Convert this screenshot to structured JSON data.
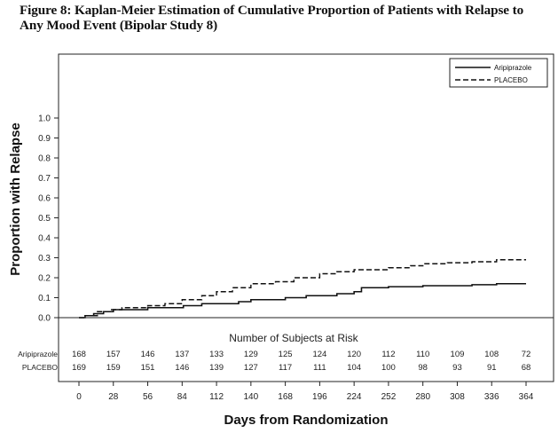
{
  "figure": {
    "title": "Figure 8: Kaplan-Meier Estimation of Cumulative Proportion of Patients with Relapse to\nAny Mood Event (Bipolar Study 8)"
  },
  "chart_data": {
    "type": "line",
    "step": true,
    "title": "Figure 8: Kaplan-Meier Estimation of Cumulative Proportion of Patients with Relapse to Any Mood Event (Bipolar Study 8)",
    "xlabel": "Days from Randomization",
    "ylabel": "Proportion with Relapse",
    "xlim": [
      0,
      364
    ],
    "ylim": [
      0,
      1.0
    ],
    "xticks": [
      0,
      28,
      56,
      84,
      112,
      140,
      168,
      196,
      224,
      252,
      280,
      308,
      336,
      364
    ],
    "xtick_labels": [
      "0",
      "28",
      "56",
      "84",
      "112",
      "140",
      "168",
      "196",
      "224",
      "252",
      "280",
      "308",
      "336",
      "364"
    ],
    "yticks": [
      0.0,
      0.1,
      0.2,
      0.3,
      0.4,
      0.5,
      0.6,
      0.7,
      0.8,
      0.9,
      1.0
    ],
    "ytick_labels": [
      "0.0",
      "0.1",
      "0.2",
      "0.3",
      "0.4",
      "0.5",
      "0.6",
      "0.7",
      "0.8",
      "0.9",
      "1.0"
    ],
    "grid": false,
    "legend_position": "top-right",
    "series": [
      {
        "name": "Aripiprazole",
        "style": "solid",
        "color": "#111111",
        "x": [
          0,
          5,
          12,
          20,
          28,
          40,
          56,
          70,
          85,
          100,
          112,
          130,
          140,
          155,
          168,
          185,
          196,
          210,
          224,
          230,
          252,
          280,
          300,
          320,
          340,
          364
        ],
        "y": [
          0.0,
          0.01,
          0.02,
          0.03,
          0.04,
          0.04,
          0.05,
          0.05,
          0.06,
          0.07,
          0.07,
          0.08,
          0.09,
          0.09,
          0.1,
          0.11,
          0.11,
          0.12,
          0.13,
          0.15,
          0.155,
          0.16,
          0.16,
          0.165,
          0.17,
          0.17
        ]
      },
      {
        "name": "PLACEBO",
        "style": "dashed",
        "color": "#111111",
        "x": [
          0,
          5,
          15,
          25,
          35,
          56,
          70,
          84,
          100,
          112,
          125,
          140,
          160,
          175,
          196,
          210,
          224,
          252,
          270,
          280,
          300,
          320,
          340,
          364
        ],
        "y": [
          0.0,
          0.01,
          0.03,
          0.04,
          0.05,
          0.06,
          0.07,
          0.09,
          0.11,
          0.13,
          0.15,
          0.17,
          0.18,
          0.2,
          0.22,
          0.23,
          0.24,
          0.25,
          0.26,
          0.27,
          0.275,
          0.28,
          0.29,
          0.29
        ]
      }
    ],
    "risk_table": {
      "title": "Number of Subjects at Risk",
      "rows": [
        {
          "label": "Aripiprazole",
          "values": [
            "168",
            "157",
            "146",
            "137",
            "133",
            "129",
            "125",
            "124",
            "120",
            "112",
            "110",
            "109",
            "108",
            "72"
          ]
        },
        {
          "label": "PLACEBO",
          "values": [
            "169",
            "159",
            "151",
            "146",
            "139",
            "127",
            "117",
            "111",
            "104",
            "100",
            "98",
            "93",
            "91",
            "68"
          ]
        }
      ]
    }
  }
}
